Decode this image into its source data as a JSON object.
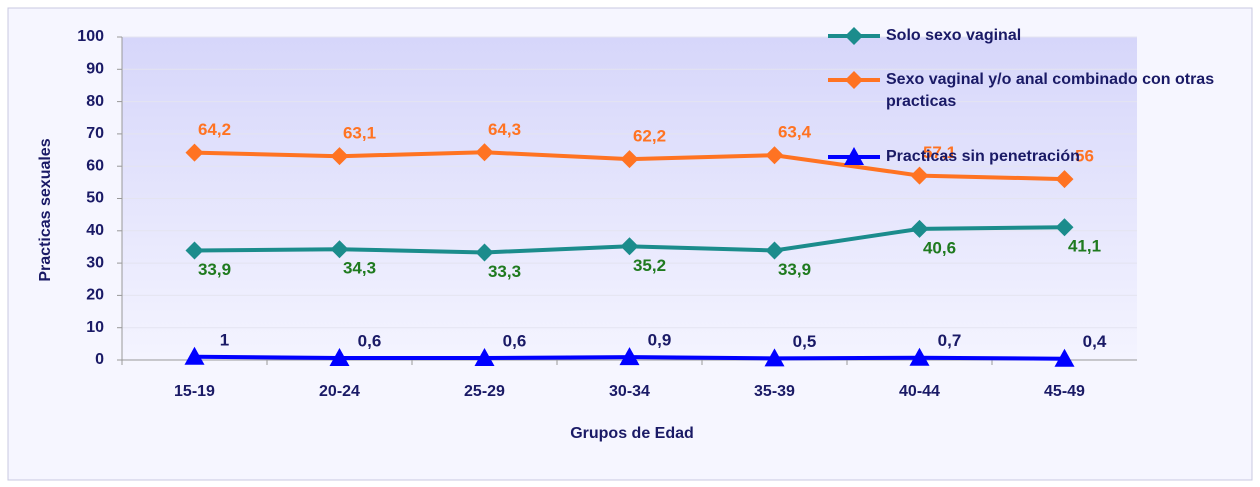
{
  "chart_data": {
    "type": "line",
    "x_label": "Grupos de Edad",
    "y_label": "Practicas sexuales",
    "categories": [
      "15-19",
      "20-24",
      "25-29",
      "30-34",
      "35-39",
      "40-44",
      "45-49"
    ],
    "series": [
      {
        "name": "Solo sexo vaginal",
        "color": "#1b8c8c",
        "label_color": "#1f7a1f",
        "marker": "diamond",
        "values": [
          33.9,
          34.3,
          33.3,
          35.2,
          33.9,
          40.6,
          41.1
        ],
        "value_labels": [
          "33,9",
          "34,3",
          "33,3",
          "35,2",
          "33,9",
          "40,6",
          "41,1"
        ]
      },
      {
        "name": "Sexo vaginal y/o anal combinado con otras practicas",
        "color": "#ff7322",
        "label_color": "#ff7322",
        "marker": "diamond",
        "values": [
          64.2,
          63.1,
          64.3,
          62.2,
          63.4,
          57.1,
          56
        ],
        "value_labels": [
          "64,2",
          "63,1",
          "64,3",
          "62,2",
          "63,4",
          "57,1",
          "56"
        ]
      },
      {
        "name": "Practicas sin penetración",
        "color": "#0000ff",
        "label_color": "#1a1a66",
        "marker": "triangle",
        "values": [
          1,
          0.6,
          0.6,
          0.9,
          0.5,
          0.7,
          0.4
        ],
        "value_labels": [
          "1",
          "0,6",
          "0,6",
          "0,9",
          "0,5",
          "0,7",
          "0,4"
        ]
      }
    ],
    "ylim": [
      0,
      100
    ],
    "yticks": [
      0,
      10,
      20,
      30,
      40,
      50,
      60,
      70,
      80,
      90,
      100
    ],
    "grid": true,
    "legend": "top-right"
  }
}
